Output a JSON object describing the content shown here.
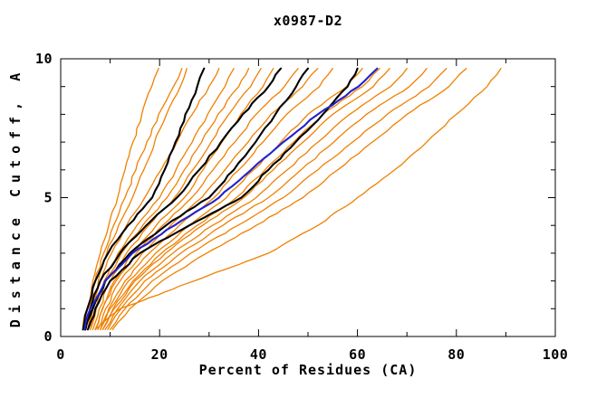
{
  "page": {
    "background": "#ffffff"
  },
  "chart_data": {
    "type": "line",
    "title": "x0987-D2",
    "xlabel": "Percent of Residues (CA)",
    "ylabel": "Distance Cutoff, A",
    "xlim": [
      0,
      100
    ],
    "ylim": [
      0,
      10
    ],
    "x_major_ticks": [
      0,
      20,
      40,
      60,
      80,
      100
    ],
    "x_minor_step": 10,
    "y_major_ticks": [
      0,
      5,
      10
    ],
    "y_minor_step": 1,
    "grid": false,
    "legend": "none",
    "frame_color": "#000000",
    "color_key": {
      "orange": "#f08000",
      "black": "#000000",
      "blue": "#2222cc"
    },
    "line_widths": {
      "orange": 1.3,
      "black": 2.1,
      "blue": 2.1
    },
    "y_levels": [
      0.25,
      1,
      2,
      3,
      4,
      5,
      6,
      7,
      8,
      9,
      9.65
    ],
    "series": [
      {
        "color": "orange",
        "x": [
          4.5,
          5.3,
          6.5,
          8,
          9.7,
          11.5,
          13,
          14.6,
          16.4,
          18.4,
          19.8
        ]
      },
      {
        "color": "orange",
        "x": [
          5,
          5.8,
          7,
          8.7,
          10.7,
          13,
          15.2,
          17.4,
          19.8,
          22.8,
          24.5
        ]
      },
      {
        "color": "orange",
        "x": [
          5.5,
          6.4,
          7.6,
          9.3,
          11.7,
          14.5,
          16.8,
          19,
          21.4,
          24.2,
          25.5
        ]
      },
      {
        "color": "orange",
        "x": [
          5.5,
          6.5,
          8,
          10.3,
          13.3,
          17,
          20.3,
          23.5,
          26.6,
          30,
          32
        ]
      },
      {
        "color": "orange",
        "x": [
          6,
          7,
          8.8,
          11.6,
          15.4,
          20,
          23.3,
          26.6,
          29.7,
          33.2,
          35
        ]
      },
      {
        "color": "orange",
        "x": [
          6,
          7.2,
          9.2,
          12.3,
          16.6,
          21.5,
          25,
          28.5,
          31.8,
          36,
          38
        ]
      },
      {
        "color": "orange",
        "x": [
          6.5,
          7.8,
          10,
          13.3,
          17.8,
          23,
          26.7,
          30.4,
          34,
          38.4,
          40.5
        ]
      },
      {
        "color": "orange",
        "x": [
          7,
          8.4,
          10.8,
          14.4,
          19.3,
          25,
          28.8,
          32.6,
          36.4,
          40.9,
          43
        ]
      },
      {
        "color": "orange",
        "x": [
          7,
          8.5,
          11.2,
          15.3,
          20.6,
          26.5,
          30.8,
          35.2,
          39.5,
          45.2,
          48
        ]
      },
      {
        "color": "orange",
        "x": [
          7.5,
          9.1,
          12,
          16.5,
          22.2,
          28.5,
          33.2,
          37.9,
          42.5,
          48.9,
          52
        ]
      },
      {
        "color": "orange",
        "x": [
          8,
          9.7,
          13,
          17.9,
          24,
          31,
          36,
          40.9,
          45.7,
          52.3,
          55
        ]
      },
      {
        "color": "orange",
        "x": [
          8,
          10,
          13.7,
          19.2,
          26,
          33.5,
          39,
          44.5,
          50,
          57.8,
          61
        ]
      },
      {
        "color": "orange",
        "x": [
          8.5,
          10.6,
          14.6,
          20.4,
          27.6,
          35.5,
          41.3,
          47.1,
          53,
          61,
          64.5
        ]
      },
      {
        "color": "orange",
        "x": [
          8.5,
          10.8,
          15,
          21.2,
          28.7,
          37,
          43,
          49,
          55,
          63.2,
          66.5
        ]
      },
      {
        "color": "orange",
        "x": [
          9,
          11.5,
          16,
          22.7,
          30.7,
          39.5,
          45.8,
          52,
          58.4,
          66.7,
          70
        ]
      },
      {
        "color": "orange",
        "x": [
          9.5,
          12.2,
          17,
          24.3,
          32.8,
          42,
          48.6,
          55.2,
          61.8,
          70.5,
          74
        ]
      },
      {
        "color": "orange",
        "x": [
          10,
          13,
          18.5,
          26.3,
          35.8,
          45,
          52,
          59,
          66,
          74.5,
          78
        ]
      },
      {
        "color": "orange",
        "x": [
          10.5,
          14,
          20.5,
          29.5,
          39.5,
          49,
          56,
          63,
          70,
          78.5,
          82
        ]
      },
      {
        "color": "orange",
        "x": [
          7,
          12,
          27,
          42,
          52,
          60,
          67.5,
          74,
          80,
          86.2,
          89
        ]
      },
      {
        "color": "black",
        "x": [
          4.5,
          5.4,
          7,
          9.6,
          13.6,
          18.5,
          21,
          23.2,
          25.2,
          27.6,
          29
        ]
      },
      {
        "color": "black",
        "x": [
          5,
          6,
          8,
          12,
          17.3,
          23.5,
          28,
          32.4,
          36.8,
          42,
          44.5
        ]
      },
      {
        "color": "black",
        "x": [
          5,
          6.5,
          9,
          14,
          21.3,
          30,
          35,
          39.4,
          43.4,
          47.6,
          50
        ]
      },
      {
        "color": "black",
        "x": [
          5.5,
          7,
          10,
          16,
          26,
          36.5,
          42,
          47.5,
          53,
          58,
          60
        ]
      },
      {
        "color": "blue",
        "x": [
          4.8,
          6,
          9,
          14.5,
          23,
          32,
          38.5,
          45,
          52,
          60.2,
          64
        ]
      }
    ]
  }
}
